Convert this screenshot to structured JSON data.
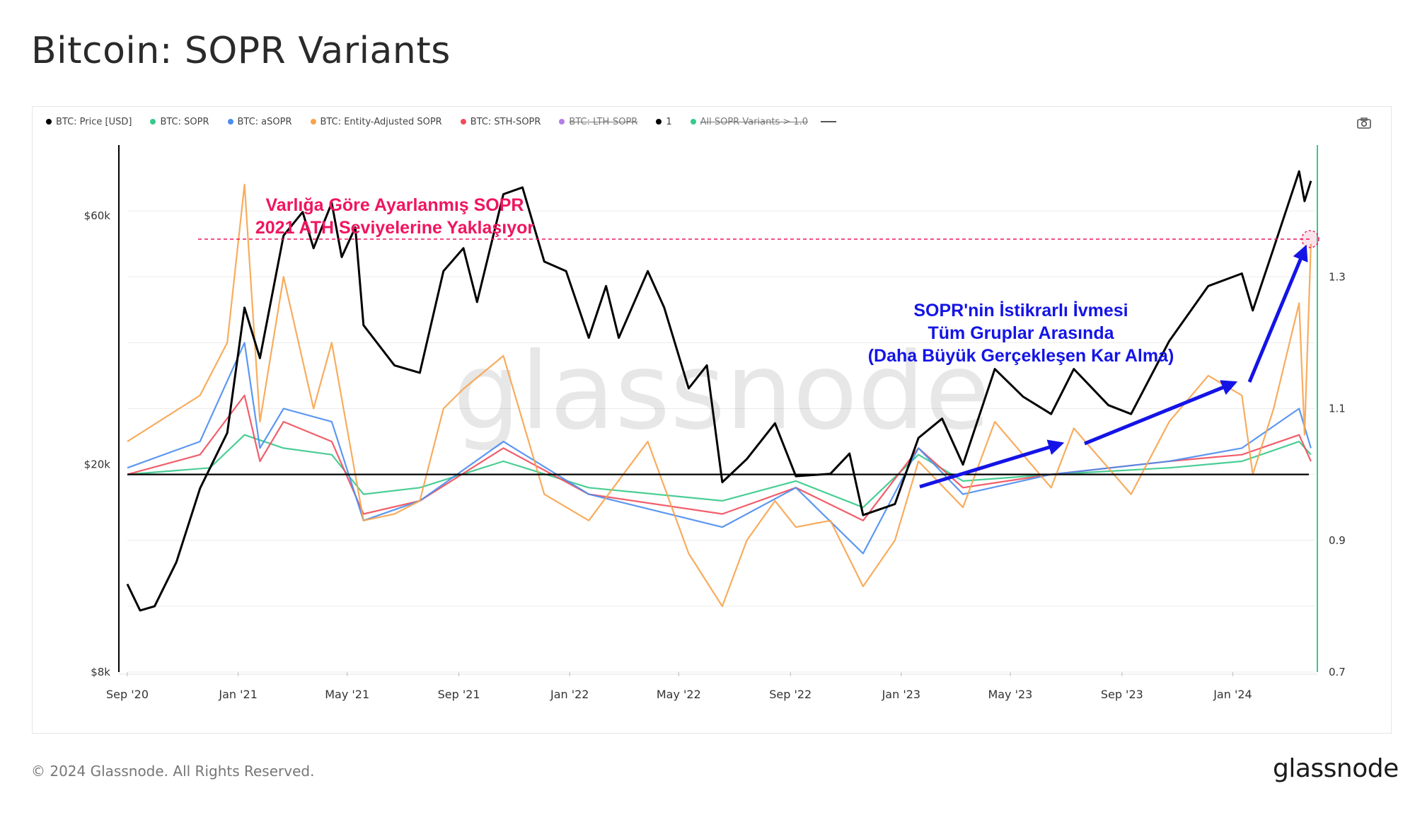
{
  "page": {
    "title": "Bitcoin: SOPR Variants",
    "copyright": "© 2024 Glassnode. All Rights Reserved.",
    "logo_text": "glassnode",
    "watermark": "glassnode"
  },
  "legend": [
    {
      "label": "BTC: Price [USD]",
      "color": "#000000",
      "struck": false
    },
    {
      "label": "BTC: SOPR",
      "color": "#36c98a",
      "struck": false
    },
    {
      "label": "BTC: aSOPR",
      "color": "#4a8cf0",
      "struck": false
    },
    {
      "label": "BTC: Entity-Adjusted SOPR",
      "color": "#f7a34b",
      "struck": false
    },
    {
      "label": "BTC: STH-SOPR",
      "color": "#f04d5b",
      "struck": false
    },
    {
      "label": "BTC: LTH-SOPR",
      "color": "#b57ce8",
      "struck": true
    },
    {
      "label": "1",
      "color": "#000000",
      "struck": false
    },
    {
      "label": "All SOPR Variants > 1.0",
      "color": "#36c98a",
      "struck": true
    }
  ],
  "icons": {
    "camera": "camera-icon"
  },
  "chart_data": {
    "type": "line",
    "x_ticks": [
      "Sep '20",
      "Jan '21",
      "May '21",
      "Sep '21",
      "Jan '22",
      "May '22",
      "Sep '22",
      "Jan '23",
      "May '23",
      "Sep '23",
      "Jan '24"
    ],
    "x_tick_dates": [
      "2020-09-01",
      "2021-01-01",
      "2021-05-01",
      "2021-09-01",
      "2022-01-01",
      "2022-05-01",
      "2022-09-01",
      "2023-01-01",
      "2023-05-01",
      "2023-09-01",
      "2024-01-01"
    ],
    "x_range": [
      "2020-09-01",
      "2024-03-31"
    ],
    "y_left": {
      "scale": "log",
      "range": [
        8000,
        82000
      ],
      "ticks": [
        8000,
        20000,
        60000
      ],
      "tick_labels": [
        "$8k",
        "$20k",
        "$60k"
      ]
    },
    "y_right": {
      "scale": "linear",
      "range": [
        0.7,
        1.5
      ],
      "ticks": [
        0.7,
        0.9,
        1.1,
        1.3
      ],
      "tick_labels": [
        "0.7",
        "0.9",
        "1.1",
        "1.3"
      ]
    },
    "reference_line": 1.0,
    "series": [
      {
        "name": "BTC: Price [USD]",
        "axis": "left",
        "color": "#000000",
        "points": [
          [
            "2020-09-01",
            11800
          ],
          [
            "2020-09-15",
            10500
          ],
          [
            "2020-10-01",
            10700
          ],
          [
            "2020-10-25",
            13000
          ],
          [
            "2020-11-20",
            18000
          ],
          [
            "2020-12-20",
            23000
          ],
          [
            "2021-01-08",
            40000
          ],
          [
            "2021-01-25",
            32000
          ],
          [
            "2021-02-20",
            55000
          ],
          [
            "2021-03-13",
            61000
          ],
          [
            "2021-03-25",
            52000
          ],
          [
            "2021-04-14",
            63500
          ],
          [
            "2021-04-25",
            50000
          ],
          [
            "2021-05-10",
            57000
          ],
          [
            "2021-05-19",
            37000
          ],
          [
            "2021-06-22",
            31000
          ],
          [
            "2021-07-20",
            30000
          ],
          [
            "2021-08-15",
            47000
          ],
          [
            "2021-09-06",
            52000
          ],
          [
            "2021-09-21",
            41000
          ],
          [
            "2021-10-20",
            66000
          ],
          [
            "2021-11-10",
            68000
          ],
          [
            "2021-12-04",
            49000
          ],
          [
            "2021-12-28",
            47000
          ],
          [
            "2022-01-22",
            35000
          ],
          [
            "2022-02-10",
            44000
          ],
          [
            "2022-02-24",
            35000
          ],
          [
            "2022-03-28",
            47000
          ],
          [
            "2022-04-15",
            40000
          ],
          [
            "2022-05-12",
            28000
          ],
          [
            "2022-06-01",
            31000
          ],
          [
            "2022-06-18",
            18500
          ],
          [
            "2022-07-15",
            20500
          ],
          [
            "2022-08-15",
            24000
          ],
          [
            "2022-09-07",
            19000
          ],
          [
            "2022-10-15",
            19200
          ],
          [
            "2022-11-05",
            21000
          ],
          [
            "2022-11-20",
            16000
          ],
          [
            "2022-12-25",
            16800
          ],
          [
            "2023-01-20",
            22500
          ],
          [
            "2023-02-15",
            24500
          ],
          [
            "2023-03-10",
            20000
          ],
          [
            "2023-04-14",
            30500
          ],
          [
            "2023-05-15",
            27000
          ],
          [
            "2023-06-15",
            25000
          ],
          [
            "2023-07-10",
            30500
          ],
          [
            "2023-08-17",
            26000
          ],
          [
            "2023-09-11",
            25000
          ],
          [
            "2023-10-23",
            34500
          ],
          [
            "2023-12-05",
            44000
          ],
          [
            "2024-01-11",
            46500
          ],
          [
            "2024-01-23",
            39500
          ],
          [
            "2024-02-15",
            52000
          ],
          [
            "2024-03-14",
            73000
          ],
          [
            "2024-03-20",
            64000
          ],
          [
            "2024-03-27",
            70000
          ]
        ]
      },
      {
        "name": "BTC: SOPR",
        "axis": "right",
        "color": "#36c98a",
        "points": [
          [
            "2020-09-01",
            1.0
          ],
          [
            "2020-12-01",
            1.01
          ],
          [
            "2021-01-08",
            1.06
          ],
          [
            "2021-02-20",
            1.04
          ],
          [
            "2021-04-14",
            1.03
          ],
          [
            "2021-05-19",
            0.97
          ],
          [
            "2021-07-20",
            0.98
          ],
          [
            "2021-10-20",
            1.02
          ],
          [
            "2022-01-22",
            0.98
          ],
          [
            "2022-06-18",
            0.96
          ],
          [
            "2022-09-07",
            0.99
          ],
          [
            "2022-11-20",
            0.95
          ],
          [
            "2023-01-20",
            1.03
          ],
          [
            "2023-03-10",
            0.99
          ],
          [
            "2023-06-15",
            1.0
          ],
          [
            "2023-10-23",
            1.01
          ],
          [
            "2024-01-11",
            1.02
          ],
          [
            "2024-03-14",
            1.05
          ],
          [
            "2024-03-27",
            1.03
          ]
        ]
      },
      {
        "name": "BTC: aSOPR",
        "axis": "right",
        "color": "#4a8cf0",
        "points": [
          [
            "2020-09-01",
            1.01
          ],
          [
            "2020-11-20",
            1.05
          ],
          [
            "2021-01-08",
            1.2
          ],
          [
            "2021-01-25",
            1.04
          ],
          [
            "2021-02-20",
            1.1
          ],
          [
            "2021-04-14",
            1.08
          ],
          [
            "2021-05-19",
            0.93
          ],
          [
            "2021-07-20",
            0.96
          ],
          [
            "2021-10-20",
            1.05
          ],
          [
            "2022-01-22",
            0.97
          ],
          [
            "2022-06-18",
            0.92
          ],
          [
            "2022-09-07",
            0.98
          ],
          [
            "2022-11-20",
            0.88
          ],
          [
            "2023-01-20",
            1.04
          ],
          [
            "2023-03-10",
            0.97
          ],
          [
            "2023-06-15",
            1.0
          ],
          [
            "2023-10-23",
            1.02
          ],
          [
            "2024-01-11",
            1.04
          ],
          [
            "2024-03-14",
            1.1
          ],
          [
            "2024-03-27",
            1.04
          ]
        ]
      },
      {
        "name": "BTC: Entity-Adjusted SOPR",
        "axis": "right",
        "color": "#f7a34b",
        "points": [
          [
            "2020-09-01",
            1.05
          ],
          [
            "2020-11-20",
            1.12
          ],
          [
            "2020-12-20",
            1.2
          ],
          [
            "2021-01-08",
            1.44
          ],
          [
            "2021-01-25",
            1.08
          ],
          [
            "2021-02-20",
            1.3
          ],
          [
            "2021-03-25",
            1.1
          ],
          [
            "2021-04-14",
            1.2
          ],
          [
            "2021-05-19",
            0.93
          ],
          [
            "2021-06-22",
            0.94
          ],
          [
            "2021-07-20",
            0.96
          ],
          [
            "2021-08-15",
            1.1
          ],
          [
            "2021-09-06",
            1.13
          ],
          [
            "2021-10-20",
            1.18
          ],
          [
            "2021-12-04",
            0.97
          ],
          [
            "2022-01-22",
            0.93
          ],
          [
            "2022-03-28",
            1.05
          ],
          [
            "2022-05-12",
            0.88
          ],
          [
            "2022-06-18",
            0.8
          ],
          [
            "2022-07-15",
            0.9
          ],
          [
            "2022-08-15",
            0.96
          ],
          [
            "2022-09-07",
            0.92
          ],
          [
            "2022-10-15",
            0.93
          ],
          [
            "2022-11-20",
            0.83
          ],
          [
            "2022-12-25",
            0.9
          ],
          [
            "2023-01-20",
            1.02
          ],
          [
            "2023-03-10",
            0.95
          ],
          [
            "2023-04-14",
            1.08
          ],
          [
            "2023-06-15",
            0.98
          ],
          [
            "2023-07-10",
            1.07
          ],
          [
            "2023-09-11",
            0.97
          ],
          [
            "2023-10-23",
            1.08
          ],
          [
            "2023-12-05",
            1.15
          ],
          [
            "2024-01-11",
            1.12
          ],
          [
            "2024-01-23",
            1.0
          ],
          [
            "2024-02-15",
            1.1
          ],
          [
            "2024-03-14",
            1.26
          ],
          [
            "2024-03-20",
            1.06
          ],
          [
            "2024-03-27",
            1.35
          ]
        ]
      },
      {
        "name": "BTC: STH-SOPR",
        "axis": "right",
        "color": "#f04d5b",
        "points": [
          [
            "2020-09-01",
            1.0
          ],
          [
            "2020-11-20",
            1.03
          ],
          [
            "2021-01-08",
            1.12
          ],
          [
            "2021-01-25",
            1.02
          ],
          [
            "2021-02-20",
            1.08
          ],
          [
            "2021-04-14",
            1.05
          ],
          [
            "2021-05-19",
            0.94
          ],
          [
            "2021-07-20",
            0.96
          ],
          [
            "2021-10-20",
            1.04
          ],
          [
            "2022-01-22",
            0.97
          ],
          [
            "2022-06-18",
            0.94
          ],
          [
            "2022-09-07",
            0.98
          ],
          [
            "2022-11-20",
            0.93
          ],
          [
            "2023-01-20",
            1.04
          ],
          [
            "2023-03-10",
            0.98
          ],
          [
            "2023-06-15",
            1.0
          ],
          [
            "2023-10-23",
            1.02
          ],
          [
            "2024-01-11",
            1.03
          ],
          [
            "2024-03-14",
            1.06
          ],
          [
            "2024-03-27",
            1.02
          ]
        ]
      }
    ],
    "annotations": [
      {
        "lines": [
          "Varlığa Göre Ayarlanmış SOPR",
          "2021 ATH Seviyelerine Yaklaşıyor"
        ],
        "color": "#f0155e"
      },
      {
        "lines": [
          "SOPR'nin İstikrarlı İvmesi",
          "Tüm Gruplar Arasında",
          "(Daha Büyük Gerçekleşen Kar Alma)"
        ],
        "color": "#1414e6"
      }
    ],
    "ath_reference": {
      "value": 1.34,
      "color": "#f0155e"
    }
  }
}
